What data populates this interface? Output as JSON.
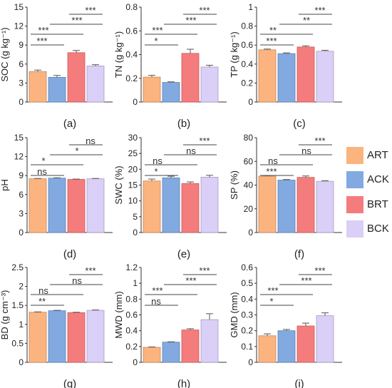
{
  "legend": {
    "items": [
      {
        "label": "ART",
        "color": "#FBB47F"
      },
      {
        "label": "ACK",
        "color": "#82AAE0"
      },
      {
        "label": "BRT",
        "color": "#F57C7C"
      },
      {
        "label": "BCK",
        "color": "#DACFF6"
      }
    ]
  },
  "chart_data": [
    {
      "type": "bar",
      "panel_label": "(a)",
      "ylabel": "SOC (g kg⁻¹)",
      "ylim": [
        0,
        15
      ],
      "yticks": [
        0,
        3,
        6,
        9,
        12,
        15
      ],
      "ytick_labels": [
        "0",
        "3",
        "6",
        "9",
        "12",
        "15"
      ],
      "categories": [
        "ART",
        "ACK",
        "BRT",
        "BCK"
      ],
      "values": [
        4.8,
        3.9,
        7.8,
        5.7
      ],
      "errors": [
        0.25,
        0.3,
        0.35,
        0.2
      ],
      "comparisons": [
        {
          "from": 0,
          "to": 1,
          "label": "***"
        },
        {
          "from": 0,
          "to": 2,
          "label": "***"
        },
        {
          "from": 1,
          "to": 3,
          "label": "***"
        },
        {
          "from": 2,
          "to": 3,
          "label": "***"
        }
      ]
    },
    {
      "type": "bar",
      "panel_label": "(b)",
      "ylabel": "TN (g kg⁻¹)",
      "ylim": [
        0,
        0.8
      ],
      "yticks": [
        0,
        0.2,
        0.4,
        0.6,
        0.8
      ],
      "ytick_labels": [
        "0",
        "0.2",
        "0.4",
        "0.6",
        "0.8"
      ],
      "categories": [
        "ART",
        "ACK",
        "BRT",
        "BCK"
      ],
      "values": [
        0.21,
        0.165,
        0.41,
        0.295
      ],
      "errors": [
        0.015,
        0.005,
        0.035,
        0.015
      ],
      "comparisons": [
        {
          "from": 0,
          "to": 1,
          "label": "*"
        },
        {
          "from": 0,
          "to": 2,
          "label": "***"
        },
        {
          "from": 1,
          "to": 3,
          "label": "***"
        },
        {
          "from": 2,
          "to": 3,
          "label": "***"
        }
      ]
    },
    {
      "type": "bar",
      "panel_label": "(c)",
      "ylabel": "TP (g kg⁻¹)",
      "ylim": [
        0,
        1
      ],
      "yticks": [
        0,
        0.2,
        0.4,
        0.6,
        0.8,
        1
      ],
      "ytick_labels": [
        "0",
        "0.2",
        "0.4",
        "0.6",
        "0.8",
        "1"
      ],
      "categories": [
        "ART",
        "ACK",
        "BRT",
        "BCK"
      ],
      "values": [
        0.55,
        0.51,
        0.58,
        0.535
      ],
      "errors": [
        0.008,
        0.008,
        0.012,
        0.01
      ],
      "comparisons": [
        {
          "from": 0,
          "to": 1,
          "label": "***"
        },
        {
          "from": 0,
          "to": 2,
          "label": "**"
        },
        {
          "from": 1,
          "to": 3,
          "label": "**"
        },
        {
          "from": 2,
          "to": 3,
          "label": "***"
        }
      ]
    },
    {
      "type": "bar",
      "panel_label": "(d)",
      "ylabel": "pH",
      "ylim": [
        0,
        15
      ],
      "yticks": [
        0,
        3,
        6,
        9,
        12,
        15
      ],
      "ytick_labels": [
        "0",
        "3",
        "6",
        "9",
        "12",
        "15"
      ],
      "categories": [
        "ART",
        "ACK",
        "BRT",
        "BCK"
      ],
      "values": [
        8.5,
        8.6,
        8.4,
        8.5
      ],
      "errors": [
        0.05,
        0.05,
        0.05,
        0.05
      ],
      "comparisons": [
        {
          "from": 0,
          "to": 1,
          "label": "ns"
        },
        {
          "from": 0,
          "to": 2,
          "label": "*"
        },
        {
          "from": 1,
          "to": 3,
          "label": "*"
        },
        {
          "from": 2,
          "to": 3,
          "label": "ns"
        }
      ]
    },
    {
      "type": "bar",
      "panel_label": "(e)",
      "ylabel": "SWC (%)",
      "ylim": [
        0,
        30
      ],
      "yticks": [
        0,
        5,
        10,
        15,
        20,
        25,
        30
      ],
      "ytick_labels": [
        "0",
        "5",
        "10",
        "15",
        "20",
        "25",
        "30"
      ],
      "categories": [
        "ART",
        "ACK",
        "BRT",
        "BCK"
      ],
      "values": [
        16.3,
        17.3,
        15.5,
        17.5
      ],
      "errors": [
        0.6,
        0.5,
        0.5,
        0.6
      ],
      "comparisons": [
        {
          "from": 0,
          "to": 1,
          "label": "*"
        },
        {
          "from": 0,
          "to": 2,
          "label": "ns"
        },
        {
          "from": 1,
          "to": 3,
          "label": "ns"
        },
        {
          "from": 2,
          "to": 3,
          "label": "***"
        }
      ]
    },
    {
      "type": "bar",
      "panel_label": "(f)",
      "ylabel": "SP (%)",
      "ylim": [
        0,
        80
      ],
      "yticks": [
        0,
        20,
        40,
        60,
        80
      ],
      "ytick_labels": [
        "0",
        "20",
        "40",
        "60",
        "80"
      ],
      "categories": [
        "ART",
        "ACK",
        "BRT",
        "BCK"
      ],
      "values": [
        47.5,
        44.2,
        46.5,
        43.2
      ],
      "errors": [
        0.5,
        0.5,
        1.2,
        0.5
      ],
      "comparisons": [
        {
          "from": 0,
          "to": 1,
          "label": "***"
        },
        {
          "from": 0,
          "to": 2,
          "label": "ns"
        },
        {
          "from": 1,
          "to": 3,
          "label": "ns"
        },
        {
          "from": 2,
          "to": 3,
          "label": "***"
        }
      ]
    },
    {
      "type": "bar",
      "panel_label": "(g)",
      "ylabel": "BD (g cm⁻³)",
      "ylim": [
        0,
        2.5
      ],
      "yticks": [
        0,
        0.5,
        1,
        1.5,
        2,
        2.5
      ],
      "ytick_labels": [
        "0",
        "0.5",
        "1",
        "1.5",
        "2",
        "2.5"
      ],
      "categories": [
        "ART",
        "ACK",
        "BRT",
        "BCK"
      ],
      "values": [
        1.32,
        1.36,
        1.31,
        1.37
      ],
      "errors": [
        0.01,
        0.01,
        0.01,
        0.01
      ],
      "comparisons": [
        {
          "from": 0,
          "to": 1,
          "label": "**"
        },
        {
          "from": 0,
          "to": 2,
          "label": "ns"
        },
        {
          "from": 1,
          "to": 3,
          "label": "ns"
        },
        {
          "from": 2,
          "to": 3,
          "label": "***"
        }
      ]
    },
    {
      "type": "bar",
      "panel_label": "(h)",
      "ylabel": "MWD (mm)",
      "ylim": [
        0,
        1.2
      ],
      "yticks": [
        0,
        0.2,
        0.4,
        0.6,
        0.8,
        1,
        1.2
      ],
      "ytick_labels": [
        "0",
        "0.2",
        "0.4",
        "0.6",
        "0.8",
        "1",
        "1.2"
      ],
      "categories": [
        "ART",
        "ACK",
        "BRT",
        "BCK"
      ],
      "values": [
        0.19,
        0.255,
        0.41,
        0.54
      ],
      "errors": [
        0.005,
        0.005,
        0.015,
        0.075
      ],
      "comparisons": [
        {
          "from": 0,
          "to": 1,
          "label": "ns"
        },
        {
          "from": 0,
          "to": 2,
          "label": "***"
        },
        {
          "from": 1,
          "to": 3,
          "label": "***"
        },
        {
          "from": 2,
          "to": 3,
          "label": "***"
        }
      ]
    },
    {
      "type": "bar",
      "panel_label": "(i)",
      "ylabel": "GMD (mm)",
      "ylim": [
        0,
        0.6
      ],
      "yticks": [
        0,
        0.1,
        0.2,
        0.3,
        0.4,
        0.5,
        0.6
      ],
      "ytick_labels": [
        "0",
        "0.1",
        "0.2",
        "0.3",
        "0.4",
        "0.5",
        "0.6"
      ],
      "categories": [
        "ART",
        "ACK",
        "BRT",
        "BCK"
      ],
      "values": [
        0.168,
        0.2,
        0.23,
        0.295
      ],
      "errors": [
        0.012,
        0.008,
        0.018,
        0.018
      ],
      "comparisons": [
        {
          "from": 0,
          "to": 1,
          "label": "*"
        },
        {
          "from": 0,
          "to": 2,
          "label": "***"
        },
        {
          "from": 1,
          "to": 3,
          "label": "***"
        },
        {
          "from": 2,
          "to": 3,
          "label": "***"
        }
      ]
    }
  ]
}
